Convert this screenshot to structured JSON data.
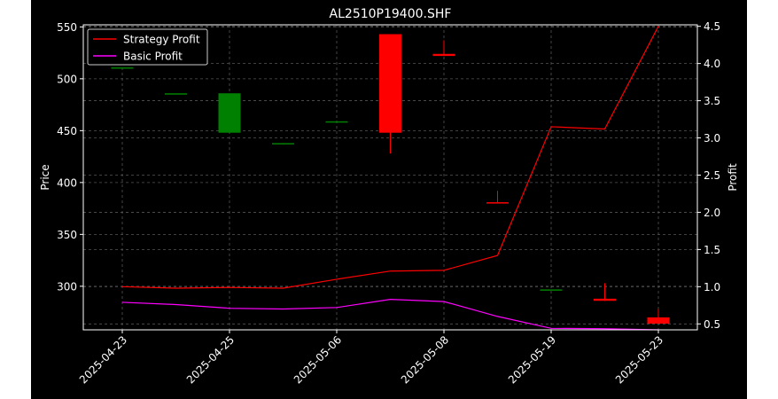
{
  "chart_data": {
    "type": "candlestick",
    "title": "AL2510P19400.SHF",
    "xlabel": "",
    "ylabel": "Price",
    "ylabel_right": "Profit",
    "ylim": [
      258,
      552
    ],
    "ylim_right": [
      0.42,
      4.52
    ],
    "yticks": [
      300,
      350,
      400,
      450,
      500,
      550
    ],
    "yticks_right": [
      0.5,
      1.0,
      1.5,
      2.0,
      2.5,
      3.0,
      3.5,
      4.0,
      4.5
    ],
    "y_tick_labels": [
      "300",
      "350",
      "400",
      "450",
      "500",
      "550"
    ],
    "y_right_tick_labels": [
      "0.5",
      "1.0",
      "1.5",
      "2.0",
      "2.5",
      "3.0",
      "3.5",
      "4.0",
      "4.5"
    ],
    "x_tick_labels": [
      "2025-04-23",
      "2025-04-25",
      "2025-05-06",
      "2025-05-08",
      "2025-05-19",
      "2025-05-23"
    ],
    "x_tick_index": [
      0,
      2,
      4,
      6,
      8,
      10
    ],
    "grid": true,
    "legend_position": "top-left",
    "candles": [
      {
        "i": 0,
        "open": 511,
        "close": 511,
        "high": 511,
        "low": 511
      },
      {
        "i": 1,
        "open": 486,
        "close": 486,
        "high": 486,
        "low": 486
      },
      {
        "i": 2,
        "open": 448,
        "close": 486,
        "high": 486,
        "low": 448
      },
      {
        "i": 3,
        "open": 438,
        "close": 438,
        "high": 438,
        "low": 438
      },
      {
        "i": 4,
        "open": 459,
        "close": 459,
        "high": 459,
        "low": 459
      },
      {
        "i": 5,
        "open": 543,
        "close": 448,
        "high": 543,
        "low": 428
      },
      {
        "i": 6,
        "open": 524,
        "close": 522,
        "high": 537,
        "low": 522
      },
      {
        "i": 7,
        "open": 381,
        "close": 380,
        "high": 392,
        "low": 380
      },
      {
        "i": 8,
        "open": 297,
        "close": 297,
        "high": 297,
        "low": 297
      },
      {
        "i": 9,
        "open": 288,
        "close": 286,
        "high": 303,
        "low": 286
      },
      {
        "i": 10,
        "open": 270,
        "close": 264,
        "high": 278,
        "low": 264
      }
    ],
    "series": [
      {
        "name": "Strategy Profit",
        "color": "#ff0000",
        "axis": "right",
        "values": [
          1.0,
          0.98,
          0.99,
          0.98,
          1.1,
          1.21,
          1.22,
          1.42,
          3.15,
          3.12,
          4.5
        ]
      },
      {
        "name": "Basic Profit",
        "color": "#ff00ff",
        "axis": "right",
        "values": [
          0.79,
          0.76,
          0.71,
          0.7,
          0.72,
          0.83,
          0.8,
          0.6,
          0.44,
          0.435,
          0.42
        ]
      }
    ],
    "colors": {
      "background": "#000000",
      "figure": "#ffffff",
      "up": "#008000",
      "down": "#ff0000",
      "grid": "#555555",
      "text": "#ffffff"
    }
  }
}
